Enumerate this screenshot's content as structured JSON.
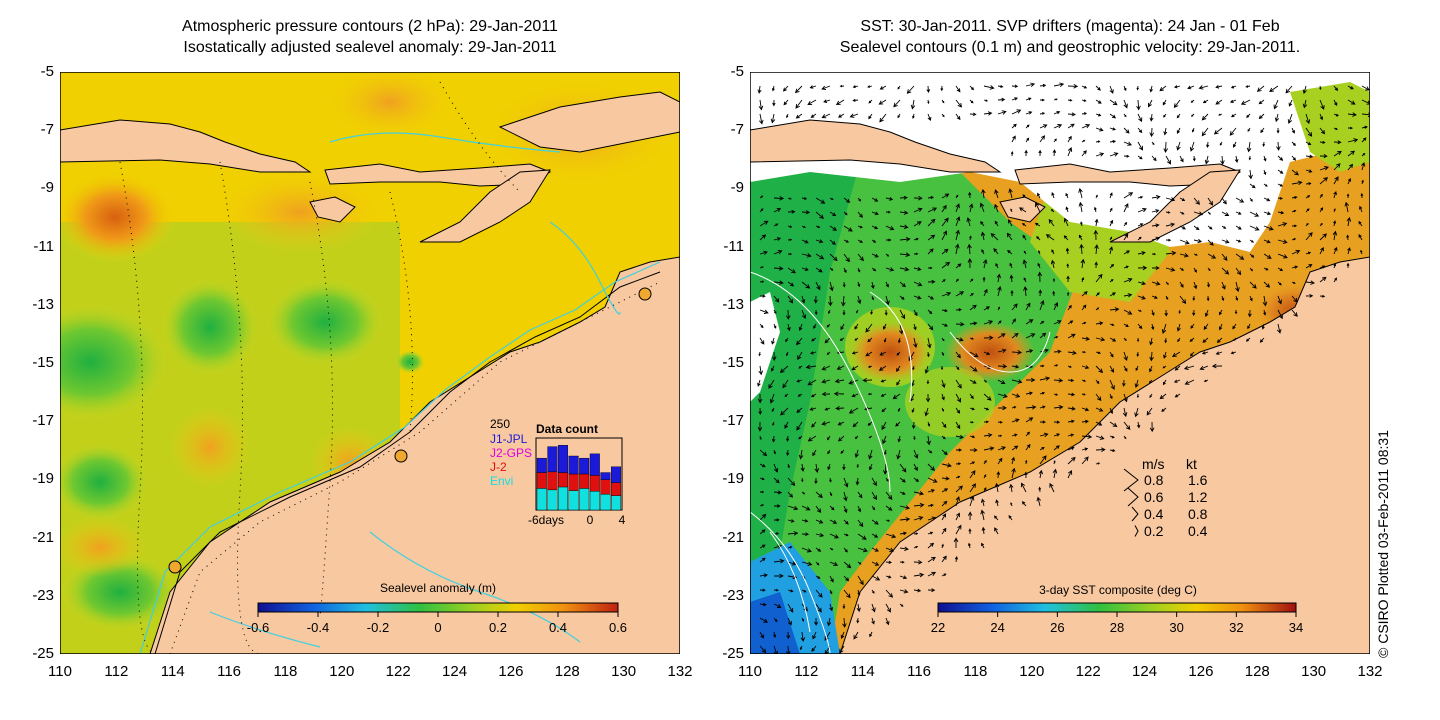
{
  "left_panel": {
    "title_line1": "Atmospheric pressure contours (2 hPa): 29-Jan-2011",
    "title_line2": "Isostatically adjusted sealevel anomaly: 29-Jan-2011",
    "colorbar": {
      "label": "Sealevel anomaly (m)",
      "ticks": [
        "-0.6",
        "-0.4",
        "-0.2",
        "0",
        "0.2",
        "0.4",
        "0.6"
      ]
    },
    "data_count": {
      "title": "Data count",
      "max_label": "250",
      "legend": [
        {
          "name": "J1-JPL",
          "color": "#1a1ad8"
        },
        {
          "name": "J2-GPS",
          "color": "#e000e0"
        },
        {
          "name": "J-2",
          "color": "#e01010"
        },
        {
          "name": "Envi",
          "color": "#10e0e0"
        }
      ],
      "x_ticks": [
        "-6days",
        "0",
        "4"
      ],
      "bars": [
        {
          "envi": 0.3,
          "j2": 0.22,
          "j1": 0.2
        },
        {
          "envi": 0.28,
          "j2": 0.25,
          "j1": 0.35
        },
        {
          "envi": 0.32,
          "j2": 0.2,
          "j1": 0.38
        },
        {
          "envi": 0.27,
          "j2": 0.23,
          "j1": 0.25
        },
        {
          "envi": 0.3,
          "j2": 0.2,
          "j1": 0.22
        },
        {
          "envi": 0.26,
          "j2": 0.22,
          "j1": 0.3
        },
        {
          "envi": 0.22,
          "j2": 0.2,
          "j1": 0.1
        },
        {
          "envi": 0.2,
          "j2": 0.18,
          "j1": 0.22
        }
      ]
    }
  },
  "right_panel": {
    "title_line1": "SST: 30-Jan-2011. SVP drifters (magenta): 24 Jan - 01 Feb",
    "title_line2": "Sealevel contours (0.1 m) and geostrophic velocity: 29-Jan-2011.",
    "colorbar": {
      "label": "3-day SST composite (deg C)",
      "ticks": [
        "22",
        "24",
        "26",
        "28",
        "30",
        "32",
        "34"
      ]
    },
    "velocity_legend": {
      "header_ms": "m/s",
      "header_kt": "kt",
      "rows": [
        {
          "ms": "0.8",
          "kt": "1.6"
        },
        {
          "ms": "0.6",
          "kt": "1.2"
        },
        {
          "ms": "0.4",
          "kt": "0.8"
        },
        {
          "ms": "0.2",
          "kt": "0.4"
        }
      ]
    }
  },
  "axes": {
    "lat_ticks": [
      "-5",
      "-7",
      "-9",
      "-11",
      "-13",
      "-15",
      "-17",
      "-19",
      "-21",
      "-23",
      "-25"
    ],
    "lon_ticks": [
      "110",
      "112",
      "114",
      "116",
      "118",
      "120",
      "122",
      "124",
      "126",
      "128",
      "130",
      "132"
    ]
  },
  "copyright": "© CSIRO Plotted 03-Feb-2011 08:31",
  "colors": {
    "land": "#f8c8a0",
    "sla_background": "#f0d000",
    "sst_background": "#e8a020",
    "contour_cyan": "#40d0e0"
  }
}
